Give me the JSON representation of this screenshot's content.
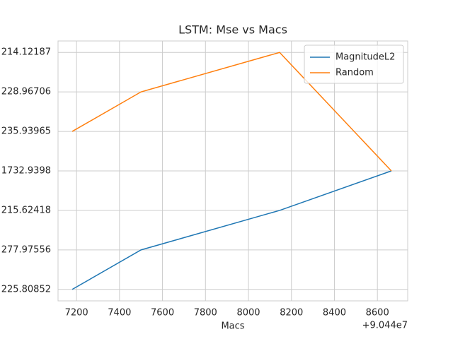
{
  "chart_data": {
    "type": "line",
    "title": "LSTM: Mse vs Macs",
    "x_label": "Macs",
    "x_offset_label": "+9.044e7",
    "x": [
      7180,
      7500,
      8145,
      8665
    ],
    "series": [
      {
        "name": "MagnitudeL2",
        "color": "#1f77b4",
        "values": [
          0,
          1,
          2,
          3
        ]
      },
      {
        "name": "Random",
        "color": "#ff7f0e",
        "values": [
          4,
          5,
          6,
          3
        ]
      }
    ],
    "xlim": [
      7114,
      8741
    ],
    "xticks": [
      7200,
      7400,
      7600,
      7800,
      8000,
      8200,
      8400,
      8600
    ],
    "ylim": [
      -0.29,
      6.29
    ],
    "yticks": [
      {
        "value": 0,
        "label": "225.80852"
      },
      {
        "value": 1,
        "label": "277.97556"
      },
      {
        "value": 2,
        "label": "215.62418"
      },
      {
        "value": 3,
        "label": "1732.9398"
      },
      {
        "value": 4,
        "label": "235.93965"
      },
      {
        "value": 5,
        "label": "228.96706"
      },
      {
        "value": 6,
        "label": "214.12187"
      }
    ],
    "grid": true,
    "legend": "upper right"
  }
}
